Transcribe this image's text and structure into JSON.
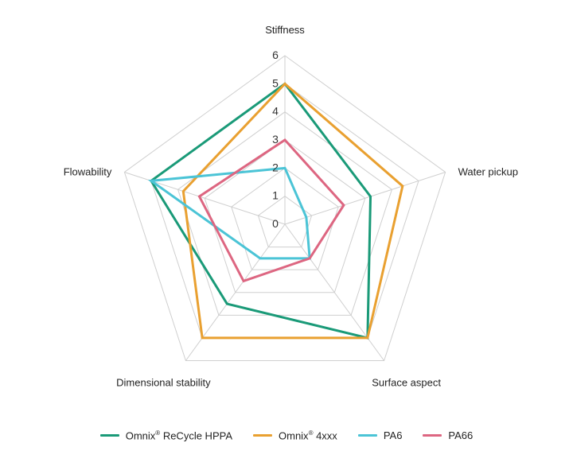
{
  "chart_data": {
    "type": "radar",
    "axes": [
      "Stiffness",
      "Water pickup",
      "Surface aspect",
      "Dimensional stability",
      "Flowability"
    ],
    "rlim": [
      0,
      6
    ],
    "ticks": [
      0,
      1,
      2,
      3,
      4,
      5,
      6
    ],
    "tick_labels": [
      "0",
      "1",
      "2",
      "3",
      "4",
      "5",
      "6"
    ],
    "series": [
      {
        "name": "Omnix® ReCycle HPPA",
        "name_main": "Omnix",
        "name_mark": "®",
        "name_rest": " ReCycle HPPA",
        "color": "#1a9a78",
        "values": [
          5,
          3.2,
          5,
          3.5,
          5
        ]
      },
      {
        "name": "Omnix® 4xxx",
        "name_main": "Omnix",
        "name_mark": "®",
        "name_rest": " 4xxx",
        "color": "#e9a030",
        "values": [
          5,
          4.4,
          5,
          5,
          3.8
        ]
      },
      {
        "name": "PA6",
        "name_main": "PA6",
        "name_mark": "",
        "name_rest": "",
        "color": "#4bc4d6",
        "values": [
          2,
          0.8,
          1.5,
          1.5,
          5
        ]
      },
      {
        "name": "PA66",
        "name_main": "PA66",
        "name_mark": "",
        "name_rest": "",
        "color": "#dd6681",
        "values": [
          3,
          2.2,
          1.5,
          2.5,
          3.2
        ]
      }
    ],
    "grid": true,
    "legend_position": "bottom"
  }
}
